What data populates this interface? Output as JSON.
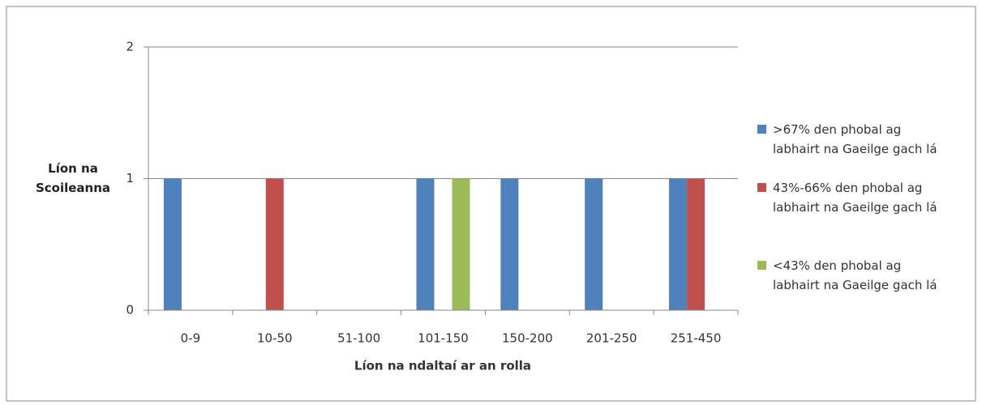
{
  "chart_data": {
    "type": "bar",
    "x_label": "Líon na ndaltaí ar an rolla",
    "y_label": "Líon na Scoileanna",
    "categories": [
      "0-9",
      "10-50",
      "51-100",
      "101-150",
      "150-200",
      "201-250",
      "251-450"
    ],
    "series": [
      {
        "name": ">67% den phobal ag labhairt na Gaeilge gach lá",
        "color": "#4f81bd",
        "values": [
          1,
          0,
          0,
          1,
          1,
          1,
          1
        ]
      },
      {
        "name": "43%-66% den phobal ag labhairt na Gaeilge gach lá",
        "color": "#c0504d",
        "values": [
          0,
          1,
          0,
          0,
          0,
          0,
          1
        ]
      },
      {
        "name": "<43% den phobal ag labhairt na Gaeilge gach lá",
        "color": "#9bbb59",
        "values": [
          0,
          0,
          0,
          1,
          0,
          0,
          0
        ]
      }
    ],
    "ylim": [
      0,
      2
    ],
    "yticks": [
      0,
      1,
      2
    ],
    "grid": true,
    "legend": "right"
  }
}
